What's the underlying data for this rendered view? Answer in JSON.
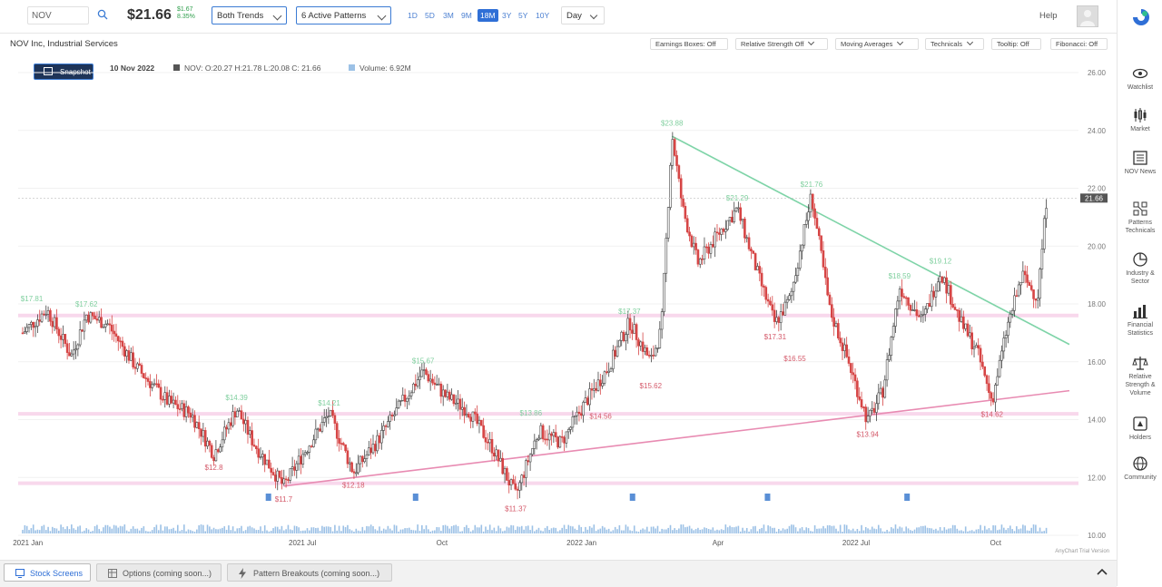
{
  "header": {
    "ticker_value": "NOV",
    "price": "$21.66",
    "change_abs": "$1.67",
    "change_pct": "8.35%",
    "trend_select": "Both Trends",
    "patterns_select": "6 Active Patterns",
    "timeframes": [
      "1D",
      "5D",
      "3M",
      "9M",
      "18M",
      "3Y",
      "5Y",
      "10Y"
    ],
    "active_timeframe": "18M",
    "interval": "Day",
    "help": "Help"
  },
  "subbar": {
    "company": "NOV Inc, Industrial Services",
    "toggles": {
      "earnings": "Earnings Boxes: Off",
      "relative": "Relative Strength Off",
      "moving": "Moving Averages",
      "technicals": "Technicals",
      "tooltip": "Tooltip: Off",
      "fibonacci": "Fibonacci: Off"
    }
  },
  "info": {
    "snapshot": "Snapshot",
    "date": "10 Nov 2022",
    "ohlc": "NOV: O:20.27 H:21.78 L:20.08 C: 21.66",
    "volume": "Volume: 6.92M"
  },
  "sidebar": {
    "items": [
      {
        "label": "Watchlist",
        "icon": "eye-icon"
      },
      {
        "label": "Market",
        "icon": "candles-icon"
      },
      {
        "label": "NOV News",
        "icon": "news-icon"
      },
      {
        "label": "Patterns Technicals",
        "icon": "patterns-icon"
      },
      {
        "label": "Industry & Sector",
        "icon": "pie-icon"
      },
      {
        "label": "Financial Statistics",
        "icon": "bars-icon"
      },
      {
        "label": "Relative Strength & Volume",
        "icon": "scale-icon"
      },
      {
        "label": "Holders",
        "icon": "holders-icon"
      },
      {
        "label": "Community",
        "icon": "globe-icon"
      }
    ]
  },
  "bottom": {
    "stock_screens": "Stock Screens",
    "options": "Options (coming soon...)",
    "breakouts": "Pattern Breakouts (coming soon...)"
  },
  "colors": {
    "accent": "#2f6fd6",
    "up": "#2e9e4b",
    "down": "#d64545",
    "trend_green": "#7fd4a8",
    "trend_pink": "#e88bb2",
    "resistance": "#f2b8dc"
  },
  "chart_data": {
    "type": "candlestick",
    "symbol": "NOV",
    "y_ticks": [
      "26.00",
      "24.00",
      "22.00",
      "20.00",
      "18.00",
      "16.00",
      "14.00",
      "12.00",
      "10.00"
    ],
    "ylim": [
      10,
      26
    ],
    "x_ticks": [
      "2021 Jan",
      "2021 Jul",
      "Oct",
      "2022 Jan",
      "Apr",
      "2022 Jul",
      "Oct"
    ],
    "last_price_label": "21.66",
    "watermark": "AnyChart Trial Version",
    "price_path": [
      [
        "2021-01-04",
        17.0
      ],
      [
        "2021-01-20",
        17.8
      ],
      [
        "2021-02-05",
        16.2
      ],
      [
        "2021-02-15",
        17.62
      ],
      [
        "2021-03-01",
        17.3
      ],
      [
        "2021-03-20",
        15.8
      ],
      [
        "2021-04-10",
        14.6
      ],
      [
        "2021-04-25",
        14.2
      ],
      [
        "2021-05-10",
        12.8
      ],
      [
        "2021-05-25",
        14.39
      ],
      [
        "2021-06-05",
        13.2
      ],
      [
        "2021-06-25",
        11.7
      ],
      [
        "2021-07-10",
        13.0
      ],
      [
        "2021-07-25",
        14.21
      ],
      [
        "2021-08-10",
        12.18
      ],
      [
        "2021-08-25",
        13.2
      ],
      [
        "2021-09-10",
        14.5
      ],
      [
        "2021-09-25",
        15.67
      ],
      [
        "2021-10-10",
        14.8
      ],
      [
        "2021-10-25",
        14.3
      ],
      [
        "2021-11-10",
        13.0
      ],
      [
        "2021-11-25",
        11.37
      ],
      [
        "2021-12-10",
        13.6
      ],
      [
        "2021-12-25",
        13.2
      ],
      [
        "2022-01-10",
        14.6
      ],
      [
        "2022-01-25",
        15.8
      ],
      [
        "2022-02-08",
        17.37
      ],
      [
        "2022-02-22",
        16.0
      ],
      [
        "2022-03-01",
        17.1
      ],
      [
        "2022-03-08",
        23.88
      ],
      [
        "2022-03-15",
        21.3
      ],
      [
        "2022-03-25",
        19.4
      ],
      [
        "2022-04-10",
        20.6
      ],
      [
        "2022-04-20",
        21.29
      ],
      [
        "2022-05-05",
        18.8
      ],
      [
        "2022-05-15",
        17.31
      ],
      [
        "2022-05-25",
        18.2
      ],
      [
        "2022-06-08",
        21.76
      ],
      [
        "2022-06-20",
        17.8
      ],
      [
        "2022-07-01",
        16.2
      ],
      [
        "2022-07-15",
        13.94
      ],
      [
        "2022-07-25",
        15.0
      ],
      [
        "2022-08-05",
        18.59
      ],
      [
        "2022-08-20",
        17.4
      ],
      [
        "2022-09-01",
        19.12
      ],
      [
        "2022-09-15",
        17.3
      ],
      [
        "2022-09-25",
        16.4
      ],
      [
        "2022-10-05",
        14.62
      ],
      [
        "2022-10-15",
        17.2
      ],
      [
        "2022-10-25",
        19.0
      ],
      [
        "2022-11-04",
        18.2
      ],
      [
        "2022-11-10",
        21.66
      ]
    ],
    "price_labels": [
      {
        "text": "$17.81",
        "date": "2021-01-10",
        "value": 17.81,
        "color": "green"
      },
      {
        "text": "$17.62",
        "date": "2021-02-15",
        "value": 17.62,
        "color": "green"
      },
      {
        "text": "$14.39",
        "date": "2021-05-25",
        "value": 14.39,
        "color": "green"
      },
      {
        "text": "$12.8",
        "date": "2021-05-10",
        "value": 12.8,
        "color": "red"
      },
      {
        "text": "$11.7",
        "date": "2021-06-25",
        "value": 11.7,
        "color": "red"
      },
      {
        "text": "$14.21",
        "date": "2021-07-25",
        "value": 14.21,
        "color": "green"
      },
      {
        "text": "$12.18",
        "date": "2021-08-10",
        "value": 12.18,
        "color": "red"
      },
      {
        "text": "$15.67",
        "date": "2021-09-25",
        "value": 15.67,
        "color": "green"
      },
      {
        "text": "$13.86",
        "date": "2021-12-05",
        "value": 13.86,
        "color": "green"
      },
      {
        "text": "$11.37",
        "date": "2021-11-25",
        "value": 11.37,
        "color": "red"
      },
      {
        "text": "$14.56",
        "date": "2022-01-20",
        "value": 14.56,
        "color": "red"
      },
      {
        "text": "$17.37",
        "date": "2022-02-08",
        "value": 17.37,
        "color": "green"
      },
      {
        "text": "$15.62",
        "date": "2022-02-22",
        "value": 15.62,
        "color": "red"
      },
      {
        "text": "$23.88",
        "date": "2022-03-08",
        "value": 23.88,
        "color": "green"
      },
      {
        "text": "$21.29",
        "date": "2022-04-20",
        "value": 21.29,
        "color": "green"
      },
      {
        "text": "$17.31",
        "date": "2022-05-15",
        "value": 17.31,
        "color": "red"
      },
      {
        "text": "$16.55",
        "date": "2022-05-28",
        "value": 16.55,
        "color": "red"
      },
      {
        "text": "$21.76",
        "date": "2022-06-08",
        "value": 21.76,
        "color": "green"
      },
      {
        "text": "$13.94",
        "date": "2022-07-15",
        "value": 13.94,
        "color": "red"
      },
      {
        "text": "$18.59",
        "date": "2022-08-05",
        "value": 18.59,
        "color": "green"
      },
      {
        "text": "$19.12",
        "date": "2022-09-01",
        "value": 19.12,
        "color": "green"
      },
      {
        "text": "$14.62",
        "date": "2022-10-05",
        "value": 14.62,
        "color": "red"
      }
    ],
    "trend_lines": [
      {
        "color": "green",
        "from": [
          "2022-03-08",
          23.8
        ],
        "to": [
          "2022-11-25",
          16.6
        ]
      },
      {
        "color": "pink",
        "from": [
          "2021-06-25",
          11.7
        ],
        "to": [
          "2022-11-25",
          15.0
        ]
      }
    ],
    "support_levels": [
      17.6,
      14.2,
      11.8
    ]
  }
}
